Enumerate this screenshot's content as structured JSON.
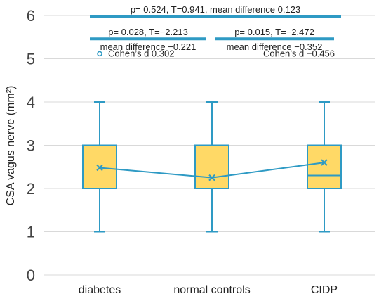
{
  "chart_data": {
    "type": "box",
    "ylabel": "CSA vagus nerve (mm²)",
    "ylim": [
      0,
      6
    ],
    "yticks": [
      "0",
      "1",
      "2",
      "3",
      "4",
      "5",
      "6"
    ],
    "grid": true,
    "categories": [
      "diabetes",
      "normal controls",
      "CIDP"
    ],
    "boxes": [
      {
        "category": "diabetes",
        "min": 1,
        "q1": 2,
        "median": 2,
        "q3": 3,
        "max": 4,
        "mean": 2.48
      },
      {
        "category": "normal controls",
        "min": 1,
        "q1": 2,
        "median": 2,
        "q3": 3,
        "max": 4,
        "mean": 2.25
      },
      {
        "category": "CIDP",
        "min": 1,
        "q1": 2,
        "median": 2.3,
        "q3": 3,
        "max": 4,
        "mean": 2.6
      }
    ],
    "mean_line": true,
    "comparisons": [
      {
        "from": "diabetes",
        "to": "CIDP",
        "label": "p= 0.524, T=0.941, mean difference 0.123",
        "y": 5.98
      },
      {
        "from": "diabetes",
        "to": "normal controls",
        "label": "p= 0.028, T=−2.213",
        "sublabel": "mean difference −0.221",
        "y": 5.46
      },
      {
        "from": "normal controls",
        "to": "CIDP",
        "label": "p= 0.015, T=−2.472",
        "sublabel": "mean difference −0.352",
        "y": 5.46
      }
    ],
    "annotations": [
      {
        "text": "Cohen’s d 0.302",
        "marker": true,
        "x": "diabetes",
        "y": 5.05
      },
      {
        "text": "Cohen’s d −0.456",
        "marker": false,
        "x": "CIDP",
        "y": 5.05
      }
    ],
    "colors": {
      "box_fill": "#ffd966",
      "box_edge": "#2e9ac4",
      "whisker": "#2e9ac4",
      "mean_line": "#2e9ac4",
      "comparison_bar": "#2e9ac4",
      "grid": "#d9d9d9"
    }
  }
}
